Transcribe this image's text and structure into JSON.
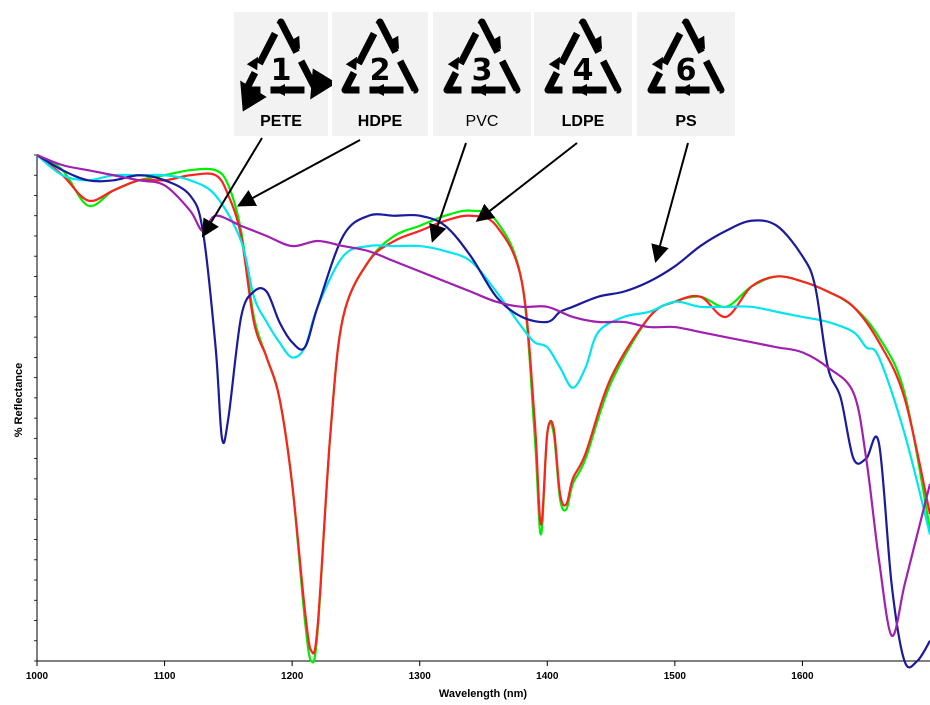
{
  "chart_data": {
    "type": "line",
    "title": "",
    "xlabel": "Wavelength (nm)",
    "ylabel": "% Reflectance",
    "xlim": [
      1000,
      1700
    ],
    "ylim": [
      0,
      100
    ],
    "x_ticks": [
      1000,
      1100,
      1200,
      1300,
      1400,
      1500,
      1600
    ],
    "grid": false,
    "legend": "recycling code icons with arrows at top",
    "annotations": [
      {
        "code": "1",
        "label": "PETE",
        "points_to": [
          1130,
          84
        ]
      },
      {
        "code": "2",
        "label": "HDPE",
        "points_to": [
          1158,
          90
        ]
      },
      {
        "code": "3",
        "label": "PVC",
        "points_to": [
          1310,
          83
        ]
      },
      {
        "code": "4",
        "label": "LDPE",
        "points_to": [
          1345,
          87
        ]
      },
      {
        "code": "6",
        "label": "PS",
        "points_to": [
          1485,
          79
        ]
      }
    ],
    "series": [
      {
        "color": "#00ee00",
        "x": [
          1000,
          1020,
          1040,
          1060,
          1080,
          1100,
          1120,
          1140,
          1150,
          1160,
          1170,
          1180,
          1190,
          1200,
          1210,
          1215,
          1220,
          1230,
          1240,
          1260,
          1280,
          1300,
          1320,
          1340,
          1360,
          1380,
          1390,
          1395,
          1400,
          1405,
          1410,
          1415,
          1420,
          1430,
          1450,
          1480,
          1500,
          1520,
          1540,
          1560,
          1580,
          1600,
          1620,
          1640,
          1660,
          1680,
          1700
        ],
        "y": [
          100,
          97,
          90,
          93,
          95,
          96,
          97,
          97,
          94,
          85,
          68,
          60,
          52,
          35,
          8,
          0,
          6,
          45,
          68,
          79,
          84,
          86,
          88,
          89,
          87,
          75,
          45,
          25,
          45,
          45,
          32,
          30,
          35,
          40,
          55,
          68,
          71,
          72,
          70,
          74,
          76,
          75,
          73,
          70,
          64,
          53,
          26
        ]
      },
      {
        "color": "#ff2020",
        "x": [
          1000,
          1020,
          1040,
          1060,
          1080,
          1100,
          1120,
          1140,
          1150,
          1160,
          1170,
          1180,
          1190,
          1200,
          1210,
          1215,
          1220,
          1230,
          1240,
          1260,
          1280,
          1300,
          1320,
          1340,
          1360,
          1380,
          1390,
          1395,
          1400,
          1405,
          1410,
          1415,
          1420,
          1430,
          1450,
          1480,
          1500,
          1520,
          1540,
          1560,
          1580,
          1600,
          1620,
          1640,
          1660,
          1680,
          1700
        ],
        "y": [
          100,
          96,
          91,
          93,
          95,
          95,
          96,
          96,
          92,
          84,
          67,
          60,
          52,
          35,
          10,
          2,
          7,
          45,
          68,
          79,
          83,
          85,
          87,
          88,
          86,
          75,
          48,
          27,
          45,
          46,
          33,
          31,
          36,
          41,
          56,
          68,
          71,
          72,
          68,
          74,
          76,
          75,
          73,
          70,
          63,
          52,
          29
        ]
      },
      {
        "color": "#00e5ee",
        "x": [
          1000,
          1020,
          1040,
          1060,
          1080,
          1100,
          1120,
          1140,
          1160,
          1170,
          1180,
          1190,
          1200,
          1210,
          1220,
          1240,
          1260,
          1280,
          1300,
          1320,
          1340,
          1360,
          1380,
          1390,
          1400,
          1410,
          1420,
          1430,
          1440,
          1460,
          1480,
          1500,
          1520,
          1540,
          1560,
          1580,
          1600,
          1620,
          1640,
          1650,
          1660,
          1680,
          1700
        ],
        "y": [
          100,
          96,
          95,
          96,
          96,
          96,
          95,
          92,
          83,
          72,
          67,
          63,
          60,
          62,
          70,
          80,
          82,
          82,
          82,
          81,
          79,
          73,
          66,
          63,
          62,
          58,
          54,
          58,
          65,
          68,
          69,
          71,
          70,
          70,
          70,
          69,
          68,
          67,
          65,
          62,
          60,
          45,
          25
        ]
      },
      {
        "color": "#1a1a9c",
        "x": [
          1000,
          1020,
          1040,
          1060,
          1080,
          1100,
          1120,
          1130,
          1140,
          1145,
          1150,
          1160,
          1170,
          1180,
          1190,
          1200,
          1210,
          1220,
          1240,
          1260,
          1280,
          1300,
          1320,
          1340,
          1360,
          1380,
          1400,
          1410,
          1420,
          1440,
          1460,
          1480,
          1500,
          1520,
          1540,
          1560,
          1580,
          1600,
          1610,
          1620,
          1630,
          1640,
          1650,
          1660,
          1670,
          1680,
          1690,
          1700
        ],
        "y": [
          100,
          97,
          95,
          95,
          96,
          95,
          92,
          85,
          62,
          44,
          48,
          68,
          73,
          73,
          67,
          63,
          62,
          70,
          84,
          88,
          88,
          88,
          86,
          80,
          72,
          68,
          67,
          69,
          70,
          72,
          73,
          75,
          78,
          82,
          85,
          87,
          86,
          80,
          74,
          58,
          52,
          40,
          40,
          43,
          15,
          0,
          0,
          4
        ]
      },
      {
        "color": "#a020b0",
        "x": [
          1000,
          1020,
          1040,
          1060,
          1080,
          1100,
          1120,
          1130,
          1140,
          1160,
          1180,
          1200,
          1220,
          1240,
          1260,
          1280,
          1300,
          1320,
          1340,
          1360,
          1380,
          1400,
          1420,
          1440,
          1460,
          1480,
          1500,
          1520,
          1540,
          1560,
          1580,
          1600,
          1620,
          1640,
          1650,
          1660,
          1670,
          1680,
          1690,
          1700
        ],
        "y": [
          100,
          98,
          97,
          96,
          95,
          94,
          89,
          85,
          88,
          86,
          84,
          82,
          83,
          82,
          81,
          79,
          77,
          75,
          73,
          71,
          70,
          70,
          68,
          67,
          67,
          66,
          66,
          65,
          64,
          63,
          62,
          61,
          58,
          53,
          40,
          20,
          5,
          15,
          25,
          35
        ]
      }
    ]
  },
  "recycling_codes": [
    {
      "number": "1",
      "label": "PETE"
    },
    {
      "number": "2",
      "label": "HDPE"
    },
    {
      "number": "3",
      "label": "PVC"
    },
    {
      "number": "4",
      "label": "LDPE"
    },
    {
      "number": "6",
      "label": "PS"
    }
  ]
}
